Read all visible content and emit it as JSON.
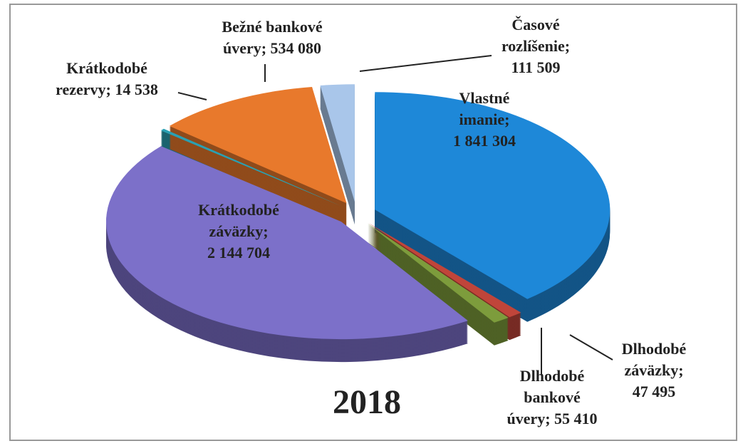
{
  "chart_data": {
    "type": "pie",
    "title": "2018",
    "values": [
      1841304,
      47495,
      55410,
      2144704,
      14538,
      534080,
      111509
    ],
    "value_labels": [
      "Vlastné imanie; 1 841 304",
      "Dlhodobé záväzky; 47 495",
      "Dlhodobé bankové úvery; 55 410",
      "Krátkodobé záväzky; 2 144 704",
      "Krátkodobé rezervy; 14 538",
      "Bežné bankové úvery; 534 080",
      "Časové rozlíšenie; 111 509"
    ],
    "colors": [
      "#1e88d8",
      "#c0453a",
      "#7d9c3c",
      "#7c70c9",
      "#2aa0b3",
      "#e8792c",
      "#a9c6ea"
    ]
  }
}
